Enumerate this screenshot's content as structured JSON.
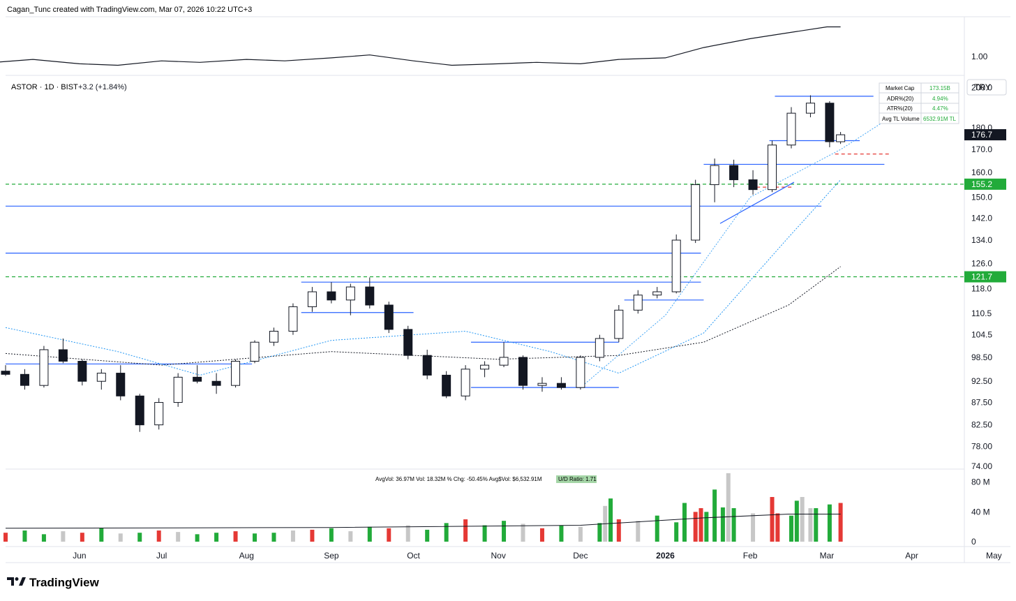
{
  "header": {
    "created_by": "Cagan_Tunc created with TradingView.com, Mar 07, 2026 10:22 UTC+3"
  },
  "footer": {
    "logo_text": "TradingView"
  },
  "chart_data": [
    {
      "type": "line",
      "panel": "relative-strength",
      "axis_labels": [
        "1.00"
      ],
      "x": [
        "2025-05-01",
        "2025-05-15",
        "2025-06-01",
        "2025-06-15",
        "2025-07-01",
        "2025-07-15",
        "2025-08-01",
        "2025-08-15",
        "2025-09-01",
        "2025-09-15",
        "2025-10-01",
        "2025-10-15",
        "2025-11-01",
        "2025-11-15",
        "2025-12-01",
        "2025-12-15",
        "2026-01-01",
        "2026-01-15",
        "2026-02-01",
        "2026-02-15",
        "2026-03-01",
        "2026-03-06"
      ],
      "values": [
        0.98,
        0.99,
        0.975,
        0.97,
        0.985,
        0.98,
        0.99,
        0.985,
        0.995,
        1.005,
        0.985,
        0.97,
        0.975,
        0.98,
        0.975,
        0.99,
        0.995,
        1.03,
        1.06,
        1.08,
        1.1,
        1.1
      ]
    },
    {
      "type": "candlestick",
      "panel": "price",
      "symbol": "ASTOR · 1D · BIST",
      "change": "+3.2 (+1.84%)",
      "currency": "TRY",
      "y_axis_labels": [
        "200.0",
        "180.0",
        "170.0",
        "160.0",
        "150.0",
        "142.0",
        "134.0",
        "126.0",
        "118.0",
        "110.5",
        "104.5",
        "98.50",
        "92.50",
        "87.50",
        "82.50",
        "78.00",
        "74.00"
      ],
      "y_axis_scale": "log",
      "ylim": [
        74,
        205
      ],
      "last_price": "176.7",
      "price_tags": [
        {
          "label": "155.2",
          "color": "#22ab3a"
        },
        {
          "label": "121.7",
          "color": "#22ab3a"
        }
      ],
      "x_axis_labels": [
        "Jun",
        "Jul",
        "Aug",
        "Sep",
        "Oct",
        "Nov",
        "Dec",
        "2026",
        "Feb",
        "Mar",
        "Apr",
        "May"
      ],
      "x_axis_dates": [
        "2025-06-01",
        "2025-07-01",
        "2025-08-01",
        "2025-09-01",
        "2025-10-01",
        "2025-11-01",
        "2025-12-01",
        "2026-01-01",
        "2026-02-01",
        "2026-03-01",
        "2026-04-01",
        "2026-05-01"
      ],
      "x_range": [
        "2025-05-05",
        "2026-05-05"
      ],
      "candles": [
        {
          "date": "2025-05-05",
          "o": 95.0,
          "h": 96.5,
          "l": 93.8,
          "c": 94.2
        },
        {
          "date": "2025-05-12",
          "o": 94.2,
          "h": 95.5,
          "l": 90.5,
          "c": 91.5
        },
        {
          "date": "2025-05-19",
          "o": 91.5,
          "h": 101.5,
          "l": 91.0,
          "c": 100.5
        },
        {
          "date": "2025-05-26",
          "o": 100.5,
          "h": 103.5,
          "l": 97.0,
          "c": 97.5
        },
        {
          "date": "2025-06-02",
          "o": 97.5,
          "h": 98.0,
          "l": 91.5,
          "c": 92.5
        },
        {
          "date": "2025-06-09",
          "o": 92.5,
          "h": 95.5,
          "l": 90.5,
          "c": 94.5
        },
        {
          "date": "2025-06-16",
          "o": 94.5,
          "h": 96.5,
          "l": 88.0,
          "c": 89.0
        },
        {
          "date": "2025-06-23",
          "o": 89.0,
          "h": 89.5,
          "l": 81.0,
          "c": 82.5
        },
        {
          "date": "2025-06-30",
          "o": 82.5,
          "h": 88.5,
          "l": 81.5,
          "c": 87.5
        },
        {
          "date": "2025-07-07",
          "o": 87.5,
          "h": 94.5,
          "l": 86.5,
          "c": 93.5
        },
        {
          "date": "2025-07-14",
          "o": 93.5,
          "h": 96.5,
          "l": 92.0,
          "c": 92.5
        },
        {
          "date": "2025-07-21",
          "o": 92.5,
          "h": 94.5,
          "l": 89.5,
          "c": 91.5
        },
        {
          "date": "2025-07-28",
          "o": 91.5,
          "h": 98.0,
          "l": 91.0,
          "c": 97.5
        },
        {
          "date": "2025-08-04",
          "o": 97.5,
          "h": 103.0,
          "l": 97.0,
          "c": 102.5
        },
        {
          "date": "2025-08-11",
          "o": 102.5,
          "h": 106.5,
          "l": 101.5,
          "c": 105.5
        },
        {
          "date": "2025-08-18",
          "o": 105.5,
          "h": 113.5,
          "l": 104.5,
          "c": 112.5
        },
        {
          "date": "2025-08-25",
          "o": 112.5,
          "h": 118.5,
          "l": 111.0,
          "c": 117.0
        },
        {
          "date": "2025-09-01",
          "o": 117.0,
          "h": 120.0,
          "l": 113.5,
          "c": 114.5
        },
        {
          "date": "2025-09-08",
          "o": 114.5,
          "h": 119.5,
          "l": 110.0,
          "c": 118.5
        },
        {
          "date": "2025-09-15",
          "o": 118.5,
          "h": 121.5,
          "l": 112.0,
          "c": 113.0
        },
        {
          "date": "2025-09-22",
          "o": 113.0,
          "h": 114.0,
          "l": 105.0,
          "c": 106.0
        },
        {
          "date": "2025-09-29",
          "o": 106.0,
          "h": 107.0,
          "l": 98.0,
          "c": 99.0
        },
        {
          "date": "2025-10-06",
          "o": 99.0,
          "h": 100.5,
          "l": 93.0,
          "c": 94.0
        },
        {
          "date": "2025-10-13",
          "o": 94.0,
          "h": 95.0,
          "l": 88.5,
          "c": 89.0
        },
        {
          "date": "2025-10-20",
          "o": 89.0,
          "h": 96.5,
          "l": 88.0,
          "c": 95.5
        },
        {
          "date": "2025-10-27",
          "o": 95.5,
          "h": 97.5,
          "l": 93.5,
          "c": 96.5
        },
        {
          "date": "2025-11-03",
          "o": 96.5,
          "h": 102.5,
          "l": 96.0,
          "c": 98.5
        },
        {
          "date": "2025-11-10",
          "o": 98.5,
          "h": 99.0,
          "l": 90.5,
          "c": 91.5
        },
        {
          "date": "2025-11-17",
          "o": 91.5,
          "h": 93.5,
          "l": 90.0,
          "c": 92.0
        },
        {
          "date": "2025-11-24",
          "o": 92.0,
          "h": 93.5,
          "l": 90.5,
          "c": 91.0
        },
        {
          "date": "2025-12-01",
          "o": 91.0,
          "h": 99.0,
          "l": 90.5,
          "c": 98.5
        },
        {
          "date": "2025-12-08",
          "o": 98.5,
          "h": 104.5,
          "l": 97.5,
          "c": 103.5
        },
        {
          "date": "2025-12-15",
          "o": 103.5,
          "h": 113.0,
          "l": 102.5,
          "c": 111.5
        },
        {
          "date": "2025-12-22",
          "o": 111.5,
          "h": 117.5,
          "l": 110.5,
          "c": 116.0
        },
        {
          "date": "2025-12-29",
          "o": 116.0,
          "h": 118.5,
          "l": 115.0,
          "c": 117.0
        },
        {
          "date": "2026-01-05",
          "o": 117.0,
          "h": 136.0,
          "l": 116.5,
          "c": 134.0
        },
        {
          "date": "2026-01-12",
          "o": 134.0,
          "h": 157.0,
          "l": 133.0,
          "c": 155.0
        },
        {
          "date": "2026-01-19",
          "o": 155.0,
          "h": 166.0,
          "l": 148.0,
          "c": 163.0
        },
        {
          "date": "2026-01-26",
          "o": 163.0,
          "h": 165.5,
          "l": 154.0,
          "c": 157.0
        },
        {
          "date": "2026-02-02",
          "o": 157.0,
          "h": 161.0,
          "l": 151.0,
          "c": 153.0
        },
        {
          "date": "2026-02-09",
          "o": 153.0,
          "h": 174.0,
          "l": 152.0,
          "c": 172.0
        },
        {
          "date": "2026-02-16",
          "o": 172.0,
          "h": 190.0,
          "l": 170.5,
          "c": 187.0
        },
        {
          "date": "2026-02-23",
          "o": 187.0,
          "h": 196.0,
          "l": 185.0,
          "c": 192.0
        },
        {
          "date": "2026-03-02",
          "o": 192.0,
          "h": 193.0,
          "l": 171.0,
          "c": 173.5
        },
        {
          "date": "2026-03-06",
          "o": 173.5,
          "h": 178.0,
          "l": 172.5,
          "c": 176.7
        }
      ],
      "horizontal_levels": [
        {
          "price": 96.8,
          "from": "2025-05-05",
          "to": "2025-08-03",
          "color": "#2962ff"
        },
        {
          "price": 146.5,
          "from": "2025-05-05",
          "to": "2026-02-27",
          "color": "#2962ff"
        },
        {
          "price": 129.5,
          "from": "2025-05-05",
          "to": "2026-01-14",
          "color": "#2962ff"
        },
        {
          "price": 121.7,
          "from": "2025-05-05",
          "to": "2026-05-05",
          "color": "#22ab3a",
          "dashed": true
        },
        {
          "price": 155.2,
          "from": "2025-05-05",
          "to": "2026-05-05",
          "color": "#22ab3a",
          "dashed": true
        },
        {
          "price": 120.0,
          "from": "2025-08-21",
          "to": "2026-01-14",
          "color": "#2962ff"
        },
        {
          "price": 110.8,
          "from": "2025-08-21",
          "to": "2025-10-01",
          "color": "#2962ff"
        },
        {
          "price": 102.5,
          "from": "2025-10-22",
          "to": "2025-12-15",
          "color": "#2962ff"
        },
        {
          "price": 91.0,
          "from": "2025-10-22",
          "to": "2025-12-15",
          "color": "#2962ff"
        },
        {
          "price": 114.5,
          "from": "2025-12-17",
          "to": "2026-01-15",
          "color": "#2962ff"
        },
        {
          "price": 163.5,
          "from": "2026-01-15",
          "to": "2026-03-22",
          "color": "#2962ff"
        },
        {
          "price": 174.0,
          "from": "2026-02-08",
          "to": "2026-03-13",
          "color": "#2962ff"
        },
        {
          "price": 195.5,
          "from": "2026-02-10",
          "to": "2026-03-18",
          "color": "#2962ff"
        },
        {
          "price": 168.0,
          "from": "2026-03-04",
          "to": "2026-03-24",
          "color": "#e53935",
          "dashed": true
        },
        {
          "price": 154.0,
          "from": "2026-02-01",
          "to": "2026-02-17",
          "color": "#e53935",
          "dashed": true
        }
      ],
      "moving_averages": [
        {
          "color": "#131722",
          "style": "dotted",
          "points": [
            [
              "2025-05-05",
              99.5
            ],
            [
              "2025-07-01",
              96.5
            ],
            [
              "2025-09-01",
              100.0
            ],
            [
              "2025-11-01",
              98.0
            ],
            [
              "2025-12-15",
              99.0
            ],
            [
              "2026-01-15",
              102.5
            ],
            [
              "2026-02-15",
              113.0
            ],
            [
              "2026-03-06",
              125.0
            ]
          ]
        },
        {
          "color": "#2196f3",
          "style": "dotted",
          "points": [
            [
              "2025-05-05",
              106.5
            ],
            [
              "2025-06-15",
              100.0
            ],
            [
              "2025-07-15",
              94.0
            ],
            [
              "2025-09-01",
              103.0
            ],
            [
              "2025-10-20",
              105.5
            ],
            [
              "2025-11-20",
              100.0
            ],
            [
              "2025-12-15",
              94.5
            ],
            [
              "2026-01-15",
              105.0
            ],
            [
              "2026-02-15",
              135.0
            ],
            [
              "2026-03-06",
              157.0
            ]
          ]
        },
        {
          "color": "#42a5f5",
          "style": "dotted",
          "points": [
            [
              "2025-12-01",
              91.0
            ],
            [
              "2026-01-01",
              110.0
            ],
            [
              "2026-02-01",
              150.0
            ],
            [
              "2026-03-06",
              170.0
            ],
            [
              "2026-03-30",
              190.0
            ]
          ]
        }
      ],
      "trendline": {
        "from": [
          "2026-01-21",
          140.0
        ],
        "to": [
          "2026-02-17",
          156.0
        ],
        "color": "#2962ff"
      },
      "info_table": [
        {
          "label": "Market Cap",
          "value": "173.15B"
        },
        {
          "label": "ADR%(20)",
          "value": "4.94%"
        },
        {
          "label": "ATR%(20)",
          "value": "4.47%"
        },
        {
          "label": "Avg TL Volume",
          "value": "6532.91M TL"
        }
      ]
    },
    {
      "type": "bar",
      "panel": "volume",
      "stats_text": "AvgVol: 36.97M   Vol: 18.32M   % Chg: -50.45%   Avg$Vol: $6,532.91M",
      "ud_ratio_text": "U/D Ratio: 1.71",
      "y_axis_labels": [
        "80 M",
        "40 M",
        "0"
      ],
      "ylim": [
        0,
        90
      ],
      "x_range": [
        "2025-05-05",
        "2026-05-05"
      ],
      "series": [
        {
          "values": [
            12,
            15,
            10,
            14,
            12,
            18,
            11,
            12,
            15,
            13,
            10,
            12,
            14,
            11,
            12,
            15,
            16,
            18,
            14,
            20,
            18,
            22,
            16,
            25,
            30,
            22,
            28,
            24,
            18,
            22,
            20,
            25,
            30,
            28,
            35,
            26,
            40,
            70,
            45,
            38,
            60,
            35,
            45,
            50,
            52,
            48,
            58,
            52,
            45,
            40,
            46,
            92,
            38,
            55,
            60,
            45
          ]
        }
      ],
      "x": [
        "2025-05-05",
        "2025-05-12",
        "2025-05-19",
        "2025-05-26",
        "2025-06-02",
        "2025-06-09",
        "2025-06-16",
        "2025-06-23",
        "2025-06-30",
        "2025-07-07",
        "2025-07-14",
        "2025-07-21",
        "2025-07-28",
        "2025-08-04",
        "2025-08-11",
        "2025-08-18",
        "2025-08-25",
        "2025-09-01",
        "2025-09-08",
        "2025-09-15",
        "2025-09-22",
        "2025-09-29",
        "2025-10-06",
        "2025-10-13",
        "2025-10-20",
        "2025-10-27",
        "2025-11-03",
        "2025-11-10",
        "2025-11-17",
        "2025-11-24",
        "2025-12-01",
        "2025-12-08",
        "2025-12-15",
        "2025-12-22",
        "2025-12-29",
        "2026-01-05",
        "2026-01-12",
        "2026-01-19",
        "2026-01-26",
        "2026-02-02",
        "2026-02-09",
        "2026-02-16",
        "2026-02-23",
        "2026-03-02",
        "2026-03-06",
        "2025-12-10",
        "2025-12-12",
        "2026-01-08",
        "2026-01-14",
        "2026-01-16",
        "2026-01-22",
        "2026-01-24",
        "2026-02-11",
        "2026-02-18",
        "2026-02-20",
        "2026-02-25"
      ],
      "avg_line": [
        [
          "2025-05-05",
          18
        ],
        [
          "2025-09-01",
          19
        ],
        [
          "2025-12-01",
          22
        ],
        [
          "2026-01-15",
          32
        ],
        [
          "2026-02-15",
          37
        ],
        [
          "2026-03-06",
          37
        ]
      ]
    }
  ]
}
